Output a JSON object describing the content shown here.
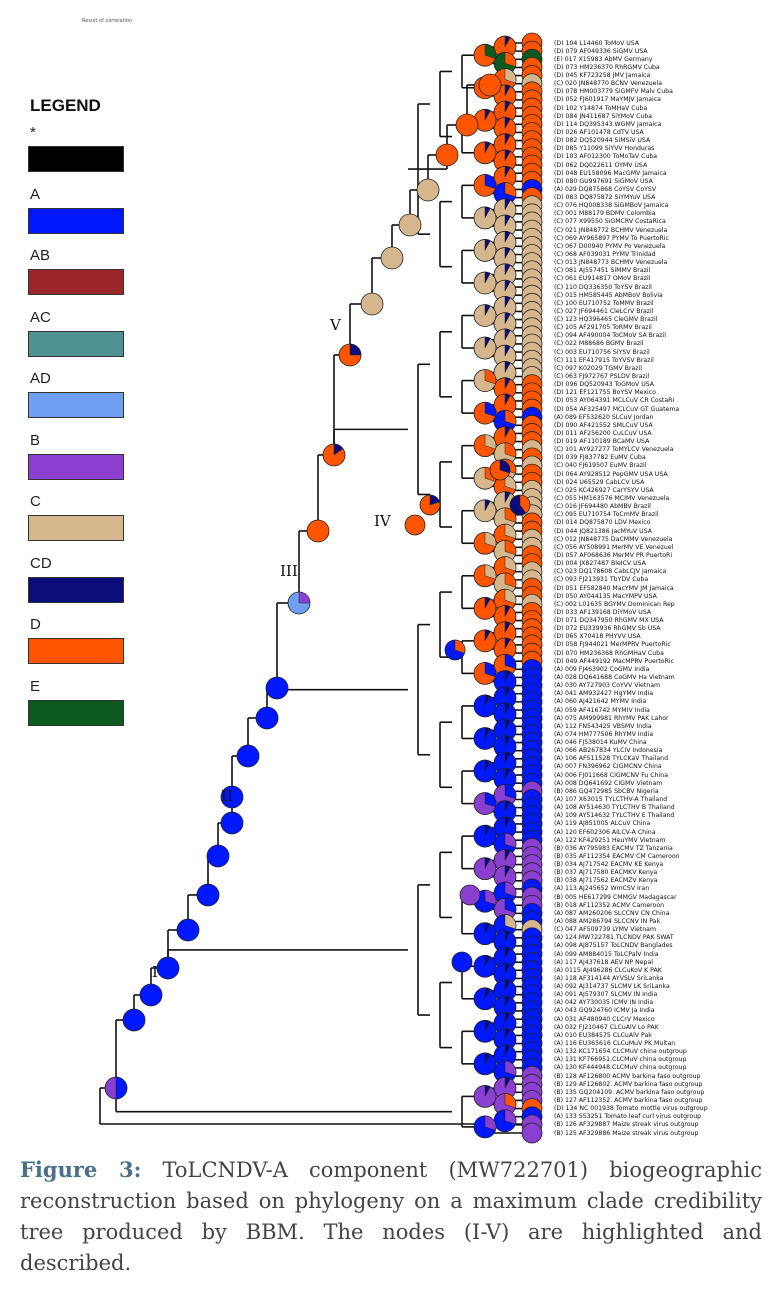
{
  "top_note": "Result of correlation",
  "legend": {
    "title": "LEGEND",
    "items": [
      {
        "label": "*",
        "color": "#000000"
      },
      {
        "label": "A",
        "color": "#0018ff"
      },
      {
        "label": "AB",
        "color": "#9b2628"
      },
      {
        "label": "AC",
        "color": "#4e9391"
      },
      {
        "label": "AD",
        "color": "#6f9ff0"
      },
      {
        "label": "B",
        "color": "#8b3fd0"
      },
      {
        "label": "C",
        "color": "#d6b68c"
      },
      {
        "label": "CD",
        "color": "#0a0c7a"
      },
      {
        "label": "D",
        "color": "#ff5500"
      },
      {
        "label": "E",
        "color": "#0c5a1f"
      }
    ]
  },
  "node_labels": [
    "I",
    "II",
    "III",
    "IV",
    "V"
  ],
  "tips": [
    "(D) 104 L14460 ToMoV USA",
    "(D) 079 AF049336 SiGMV USA",
    "(E) 017 X15983 AbMV Germany",
    "(D) 073 HM236370 RhRGMV Cuba",
    "(D) 045 KF723258 JMV Jamaica",
    "(C) 020 JN848770 BCNV Venezuela",
    "(D) 078 HM003779 SiGMFV Malv Cuba",
    "(D) 052 FJ601917 MaYMJV Jamaica",
    "(D) 102 Y14874 ToMHaV Cuba",
    "(D) 084 JN411687 SiYMoV Cuba",
    "(D) 114 DQ395343 WGMV Jamaica",
    "(D) 026 AF101478 CdTV USA",
    "(D) 082 DQ520944 SiMSiV USA",
    "(D) 085 Y11099 SiYVV Honduras",
    "(D) 103 AF012300 ToMoTaV Cuba",
    "(D) 062 DQ022611 OYMV USA",
    "(D) 048 EU158096 MacGMV Jamaica",
    "(D) 080 GU997691 SiGMoV USA",
    "(A) 029 DQ875868 CoYSV CoYSV",
    "(D) 083 DQ875872 SiYMYuV USA",
    "(C) 076 HQ008338 SiGMBoV Jamaica",
    "(C) 001 M88179 BDMV Colombia",
    "(C) 077 X99550 SiGMCRV CostaRica",
    "(C) 021 JN848772 BCHMV Venezuela",
    "(C) 069 AY965897 PYMV To PuertoRic",
    "(C) 067 D00940 PYMV Po Venezuela",
    "(C) 068 AF039031 PYMV Trinidad",
    "(C) 013 JN848773 BCHMV Venezuela",
    "(C) 081 AJ557451 SiMMV Brazil",
    "(C) 061 EU914817 OMoV Brazil",
    "(C) 110 DQ336350 ToYSV Brazil",
    "(C) 015 HM585445 AbMBoV Bolivia",
    "(C) 100 EU710752 ToMMV Brazil",
    "(C) 027 JF694461 CleLCrV Brazil",
    "(C) 123 HQ396465 CleGMV Brazil",
    "(C) 105 AF291705 ToRMV Brazil",
    "(C) 094 AF490004 ToCMoV SA Brazil",
    "(C) 022 M88686 BGMV Brazil",
    "(C) 003 EU710756 SiYSV Brazil",
    "(C) 111 EF417915 ToYVSV Brazil",
    "(C) 097 K02029 TGMV Brazil",
    "(C) 063 FJ972767 PSLDV Brazil",
    "(D) 096 DQ520943 ToGMoV USA",
    "(D) 121 EF121755 BoYSV Mexico",
    "(D) 053 AY064391 MCLCuV CR CostaRi",
    "(D) 054 AF325497 MCLCuV GT Guatema",
    "(A) 089 EF532620 SLCuV Jordan",
    "(D) 090 AF421552 SMLCuV USA",
    "(D) 011 AF256200 CuLCuV USA",
    "(D) 019 AF110189 BCaMV USA",
    "(C) 101 AY927277 ToMYLCV Venezuela",
    "(D) 039 FJ837782 EuMV Cuba",
    "(C) 040 FJ619507 EuMV Brazil",
    "(D) 064 AY928512 PepGMV USA USA",
    "(D) 024 U65529 CabLCV USA",
    "(C) 025 KC426927 CarYSYV USA",
    "(C) 055 HM163576 MCIMV Venezuela",
    "(C) 016 JF694480 AbMBV Brazil",
    "(C) 095 EU710754 ToCmMV Brazil",
    "(D) 014 DQ875870 LDV Mexico",
    "(D) 044 JQ821386 JacMYuV USA",
    "(C) 012 JN848775 DaCMMV Venezuela",
    "(C) 056 AY508991 MerMV VE Venezuel",
    "(D) 057 AF068636 MerMV PR PuertoRi",
    "(D) 004 JX827487 BleICV USA",
    "(C) 023 DQ178608 CabLCJV Jamaica",
    "(C) 093 FJ213931 TbYDV Cuba",
    "(D) 051 EF582840 MacYMV JM Jamaica",
    "(D) 050 AY044135 MacYMPV USA",
    "(C) 002 L01635 BGYMV Dominican Rep",
    "(D) 033 AF139168 DiYMoV USA",
    "(D) 071 DQ347950 RhGMV MX USA",
    "(D) 072 EU339936 RhGMV Sb USA",
    "(D) 065 X70418 PHYVV USA",
    "(D) 058 FJ944021 MerMPRV PuertoRic",
    "(D) 070 HM236368 RhGMHaV Cuba",
    "(D) 049 AF449192 MacMPRV PuertoRic",
    "(A) 009 FJ463902 CoGMV India",
    "(A) 028 DQ641688 CoGMV Ha Vietnam",
    "(A) 030 AY727903 CoYVV Vietnam",
    "(A) 041 AM932427 HgYMV India",
    "(A) 060 AJ421642 MYMV India",
    "(A) 059 AF416742 MYMIV India",
    "(A) 075 AM999981 RhYMV PAK Lahor",
    "(A) 112 FN543425 VBSMV India",
    "(A) 074 HM777506 RhYMV India",
    "(A) 046 FJ538014 KuMV China",
    "(A) 066 AB267834 YLCIV Indonesia",
    "(A) 106 AF511528 TYLCKaV Thailand",
    "(A) 007 FN396962 CIGMCNV China",
    "(A) 006 FJ011668 CIGMCNV Fu China",
    "(A) 008 DQ641692 CIGMV Vietnam",
    "(B) 086 GQ472985 SbCBV Nigeria",
    "(A) 107 X63015 TYLCTHV-A Thailand",
    "(A) 108 AY514630 TYLCTHV B Thailand",
    "(A) 109 AY514632 TYLCTHV E Thailand",
    "(A) 119 AJ851005 ALCuV China",
    "(A) 120 EF602306 AILCV-A China",
    "(A) 122 KF429251 HeuYMV Vietnam",
    "(B) 036 AY795983 EACMV TZ Tanzania",
    "(B) 035 AF112354 EACMV CM Cameroon",
    "(B) 034 AJ717542 EACMV KE Kenya",
    "(B) 037 AJ717580 EACMKV Kenya",
    "(B) 038 AJ717562 EACMZV Kenya",
    "(A) 113 AJ245652 WmCSV Iran",
    "(B) 005 HE617299 CMMGV Madagascar",
    "(B) 018 AF112352 ACMV Cameroon",
    "(A) 087 AM260206 SLCCNV CN China",
    "(A) 088 AM286794 SLCCNV IN Pak",
    "(C) 047 AF509739 LYMV Vietnam",
    "(A) 124 MW722781 TLCNDV PAK SWAT",
    "(A) 098 AJ875157 ToLCNDV Banglades",
    "(A) 099 AM884015 ToLCPalV India",
    "(A) 117 AJ437618 AEV NP Nepal",
    "(A) 0115 AJ496286 CLCuKoV K PAK",
    "(A) 118 AF314144 AYVSLV SriLanka",
    "(A) 092 AJ314737 SLCMV LK SriLanka",
    "(A) 091 AJ579307 SLCMV IN India",
    "(A) 042 AY730035 ICMV IN India",
    "(A) 043 GQ924760 ICMV Ja India",
    "(A) 031 AF480940 CLCrV Mexico",
    "(A) 032 FJ210467 CLCuAlV Lo PAK",
    "(A) 010 EU384575 CLCuAlV Pak",
    "(A) 116 EU365616 CLCuMuV PK Multan",
    "(A) 132 KC171654 CLCMuV china outgroup",
    "(A) 131 KF766951.CLCMuV china outgroup",
    "(A) 130 KF444948.CLCMuV china outgroup",
    "(B) 128 AF126800   ACMV barkina faso outgroup",
    "(B) 129 AF126802.  ACMV barkina faso outgroup",
    "(B) 135 GQ204109.  ACMV barkina faso outgroup",
    "(B) 127 AF112352.  ACMV barkina faso outgroup",
    "(D) 134 NC 001938    Tomato mottle virus outgroup",
    "(A) 133 S53251   Tomato leaf curl virus outgroup",
    "(B) 126 AF329887 Maize streak virus outgroup",
    "(B) 125 AF329886 Maize streak virus outgroup"
  ],
  "caption": {
    "lead": "Figure 3:",
    "text": " ToLCNDV-A component (MW722701) biogeographic reconstruction based on phylogeny on a maximum clade credibility tree produced by BBM. The nodes (I-V) are highlighted and described."
  }
}
